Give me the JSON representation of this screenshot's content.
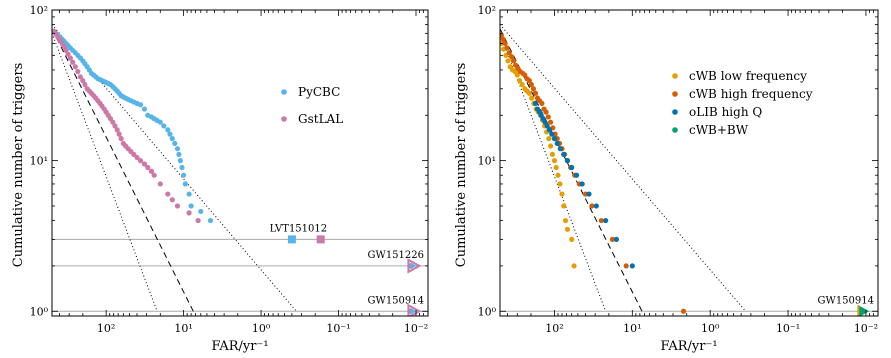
{
  "chart_data": [
    {
      "type": "scatter",
      "xscale": "log",
      "yscale": "log",
      "xaxis_reversed": true,
      "xlim": [
        500,
        0.007
      ],
      "ylim": [
        0.93,
        100
      ],
      "xlabel": "FAR/yr⁻¹",
      "ylabel": "Cumulative number of triggers",
      "x_tick_labels": [
        {
          "value": 100,
          "label": "10²"
        },
        {
          "value": 10,
          "label": "10¹"
        },
        {
          "value": 1,
          "label": "10⁰"
        },
        {
          "value": 0.1,
          "label": "10⁻¹"
        },
        {
          "value": 0.01,
          "label": "10⁻²"
        }
      ],
      "y_tick_labels": [
        {
          "value": 1,
          "label": "10⁰"
        },
        {
          "value": 10,
          "label": "10¹"
        },
        {
          "value": 100,
          "label": "10²"
        }
      ],
      "legend_position": "right",
      "series": [
        {
          "name": "PyCBC",
          "color": "#56b4e9",
          "points": [
            [
              470,
              72
            ],
            [
              445,
              70
            ],
            [
              420,
              68
            ],
            [
              395,
              66
            ],
            [
              370,
              64
            ],
            [
              350,
              62
            ],
            [
              330,
              60
            ],
            [
              310,
              58
            ],
            [
              290,
              56
            ],
            [
              270,
              54
            ],
            [
              250,
              52
            ],
            [
              232,
              50
            ],
            [
              215,
              48
            ],
            [
              200,
              46
            ],
            [
              188,
              44
            ],
            [
              176,
              42
            ],
            [
              165,
              40
            ],
            [
              155,
              38
            ],
            [
              145,
              37
            ],
            [
              136,
              36
            ],
            [
              128,
              35
            ],
            [
              120,
              34.5
            ],
            [
              113,
              34
            ],
            [
              106,
              33.5
            ],
            [
              100,
              33
            ],
            [
              94,
              32.5
            ],
            [
              88,
              32
            ],
            [
              82,
              31
            ],
            [
              77,
              30
            ],
            [
              72,
              29
            ],
            [
              68,
              28
            ],
            [
              64,
              27
            ],
            [
              60,
              26.5
            ],
            [
              56,
              26
            ],
            [
              52,
              25.5
            ],
            [
              48,
              25
            ],
            [
              44,
              24.5
            ],
            [
              40,
              24
            ],
            [
              36,
              23.5
            ],
            [
              32,
              22
            ],
            [
              29,
              20
            ],
            [
              26,
              19.5
            ],
            [
              24,
              19
            ],
            [
              22,
              18.5
            ],
            [
              20,
              18
            ],
            [
              18,
              17
            ],
            [
              16,
              16
            ],
            [
              15,
              15
            ],
            [
              14,
              14
            ],
            [
              13,
              13
            ],
            [
              12,
              12
            ],
            [
              11.5,
              11
            ],
            [
              11,
              10
            ],
            [
              10.5,
              9
            ],
            [
              10,
              8
            ],
            [
              9.5,
              7
            ],
            [
              8.5,
              6
            ],
            [
              8,
              5
            ],
            [
              6,
              4.6
            ],
            [
              4.5,
              4
            ],
            [
              0.4,
              3
            ]
          ]
        },
        {
          "name": "GstLAL",
          "color": "#cc79a7",
          "points": [
            [
              470,
              72
            ],
            [
              445,
              69
            ],
            [
              420,
              66
            ],
            [
              395,
              63
            ],
            [
              370,
              60
            ],
            [
              350,
              57
            ],
            [
              330,
              54
            ],
            [
              310,
              51
            ],
            [
              290,
              48
            ],
            [
              270,
              45
            ],
            [
              250,
              42
            ],
            [
              232,
              39
            ],
            [
              215,
              36
            ],
            [
              200,
              34
            ],
            [
              188,
              32
            ],
            [
              176,
              30
            ],
            [
              165,
              29
            ],
            [
              155,
              28
            ],
            [
              145,
              27
            ],
            [
              136,
              26
            ],
            [
              128,
              25
            ],
            [
              120,
              24
            ],
            [
              113,
              23
            ],
            [
              106,
              22
            ],
            [
              100,
              21
            ],
            [
              94,
              20
            ],
            [
              88,
              19
            ],
            [
              82,
              18
            ],
            [
              77,
              17
            ],
            [
              72,
              16
            ],
            [
              68,
              15
            ],
            [
              64,
              14
            ],
            [
              60,
              13
            ],
            [
              56,
              12.5
            ],
            [
              52,
              12
            ],
            [
              48,
              11.5
            ],
            [
              44,
              11
            ],
            [
              40,
              10.5
            ],
            [
              36,
              10
            ],
            [
              32,
              9.5
            ],
            [
              29,
              9
            ],
            [
              26,
              8.5
            ],
            [
              24,
              8
            ],
            [
              20,
              7
            ],
            [
              16,
              6
            ],
            [
              14,
              5.5
            ],
            [
              12,
              5
            ],
            [
              8.5,
              4.5
            ],
            [
              6.5,
              4
            ],
            [
              0.17,
              3
            ],
            [
              0.012,
              2
            ],
            [
              0.012,
              1
            ]
          ]
        }
      ],
      "reference_lines": [
        {
          "style": "dashed",
          "from": [
            500,
            75
          ],
          "to": [
            7.5,
            1
          ]
        },
        {
          "style": "dotted",
          "from": [
            500,
            70
          ],
          "to": [
            22,
            1
          ]
        },
        {
          "style": "dotted",
          "from": [
            500,
            80
          ],
          "to": [
            0.35,
            1
          ]
        }
      ],
      "horizontal_lines": [
        3,
        2,
        1
      ],
      "annotations": [
        {
          "text": "LVT151012",
          "x": 0.33,
          "y": 3
        },
        {
          "text": "GW151226",
          "x": 0.012,
          "y": 2
        },
        {
          "text": "GW150914",
          "x": 0.012,
          "y": 1
        }
      ]
    },
    {
      "type": "scatter",
      "xscale": "log",
      "yscale": "log",
      "xaxis_reversed": true,
      "xlim": [
        500,
        0.007
      ],
      "ylim": [
        0.93,
        100
      ],
      "xlabel": "FAR/yr⁻¹",
      "ylabel": "Cumulative number of triggers",
      "x_tick_labels": [
        {
          "value": 100,
          "label": "10²"
        },
        {
          "value": 10,
          "label": "10¹"
        },
        {
          "value": 1,
          "label": "10⁰"
        },
        {
          "value": 0.1,
          "label": "10⁻¹"
        },
        {
          "value": 0.01,
          "label": "10⁻²"
        }
      ],
      "y_tick_labels": [
        {
          "value": 1,
          "label": "10⁰"
        },
        {
          "value": 10,
          "label": "10¹"
        },
        {
          "value": 100,
          "label": "10²"
        }
      ],
      "legend_position": "top-right",
      "series": [
        {
          "name": "cWB low frequency",
          "color": "#e69f00",
          "points": [
            [
              480,
              60
            ],
            [
              450,
              55
            ],
            [
              420,
              50
            ],
            [
              395,
              46
            ],
            [
              370,
              42
            ],
            [
              345,
              40
            ],
            [
              320,
              39
            ],
            [
              300,
              37
            ],
            [
              280,
              34
            ],
            [
              260,
              32
            ],
            [
              240,
              30
            ],
            [
              225,
              29
            ],
            [
              210,
              28
            ],
            [
              196,
              26
            ],
            [
              184,
              24
            ],
            [
              172,
              22
            ],
            [
              161,
              21
            ],
            [
              151,
              20
            ],
            [
              142,
              18.5
            ],
            [
              134,
              17
            ],
            [
              126,
              15.5
            ],
            [
              118,
              14
            ],
            [
              112,
              12.5
            ],
            [
              106,
              11
            ],
            [
              100,
              10
            ],
            [
              95,
              9
            ],
            [
              90,
              8
            ],
            [
              85,
              7
            ],
            [
              80,
              6
            ],
            [
              76,
              5
            ],
            [
              72,
              4
            ],
            [
              68,
              3.5
            ],
            [
              60,
              3
            ],
            [
              56,
              2
            ]
          ]
        },
        {
          "name": "cWB high frequency",
          "color": "#d55e00",
          "points": [
            [
              480,
              68
            ],
            [
              455,
              64
            ],
            [
              430,
              60
            ],
            [
              405,
              56
            ],
            [
              380,
              52
            ],
            [
              355,
              49
            ],
            [
              335,
              46
            ],
            [
              315,
              43
            ],
            [
              295,
              41
            ],
            [
              275,
              39
            ],
            [
              255,
              38
            ],
            [
              240,
              37
            ],
            [
              225,
              35
            ],
            [
              210,
              34
            ],
            [
              198,
              32
            ],
            [
              186,
              30
            ],
            [
              175,
              28
            ],
            [
              165,
              26
            ],
            [
              155,
              25
            ],
            [
              145,
              24
            ],
            [
              136,
              22
            ],
            [
              128,
              21
            ],
            [
              120,
              19.5
            ],
            [
              112,
              18
            ],
            [
              105,
              16.5
            ],
            [
              98,
              15
            ],
            [
              92,
              14
            ],
            [
              86,
              13
            ],
            [
              80,
              12
            ],
            [
              74,
              11
            ],
            [
              68,
              10
            ],
            [
              62,
              9
            ],
            [
              55,
              8
            ],
            [
              48,
              7
            ],
            [
              40,
              6
            ],
            [
              33,
              5
            ],
            [
              25,
              4
            ],
            [
              18,
              3
            ],
            [
              12,
              2
            ],
            [
              2.2,
              1
            ]
          ]
        },
        {
          "name": "oLIB high Q",
          "color": "#0072b2",
          "points": [
            [
              175,
              24
            ],
            [
              165,
              22
            ],
            [
              155,
              21
            ],
            [
              148,
              20
            ],
            [
              140,
              19
            ],
            [
              132,
              18
            ],
            [
              124,
              17
            ],
            [
              116,
              16
            ],
            [
              108,
              15
            ],
            [
              100,
              14
            ],
            [
              92,
              13
            ],
            [
              84,
              12
            ],
            [
              76,
              11
            ],
            [
              68,
              10
            ],
            [
              60,
              9
            ],
            [
              52,
              8
            ],
            [
              44,
              7
            ],
            [
              36,
              6
            ],
            [
              29,
              5
            ],
            [
              22,
              4
            ],
            [
              16,
              3
            ],
            [
              10,
              2
            ]
          ]
        },
        {
          "name": "cWB+BW",
          "color": "#009e73",
          "points": [
            [
              0.012,
              1
            ]
          ]
        }
      ],
      "reference_lines": [
        {
          "style": "dashed",
          "from": [
            500,
            75
          ],
          "to": [
            7.5,
            1
          ]
        },
        {
          "style": "dotted",
          "from": [
            500,
            70
          ],
          "to": [
            22,
            1
          ]
        },
        {
          "style": "dotted",
          "from": [
            500,
            80
          ],
          "to": [
            0.35,
            1
          ]
        }
      ],
      "horizontal_lines": [
        1
      ],
      "annotations": [
        {
          "text": "GW150914",
          "x": 0.012,
          "y": 1
        }
      ]
    }
  ]
}
